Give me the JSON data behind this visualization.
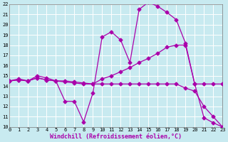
{
  "xlabel": "Windchill (Refroidissement éolien,°C)",
  "background_color": "#c8eaf0",
  "line_color": "#aa00aa",
  "grid_color": "#ffffff",
  "xlim": [
    0,
    23
  ],
  "ylim": [
    10,
    22
  ],
  "xticks": [
    0,
    1,
    2,
    3,
    4,
    5,
    6,
    7,
    8,
    9,
    10,
    11,
    12,
    13,
    14,
    15,
    16,
    17,
    18,
    19,
    20,
    21,
    22,
    23
  ],
  "yticks": [
    10,
    11,
    12,
    13,
    14,
    15,
    16,
    17,
    18,
    19,
    20,
    21,
    22
  ],
  "curve1_x": [
    0,
    1,
    2,
    3,
    4,
    5,
    6,
    7,
    8,
    9,
    10,
    11,
    12,
    13,
    14,
    15,
    16,
    17,
    18,
    19,
    20,
    21,
    22,
    23
  ],
  "curve1_y": [
    14.5,
    14.7,
    14.5,
    15.0,
    14.8,
    14.5,
    12.5,
    12.5,
    10.5,
    13.3,
    18.8,
    19.3,
    18.5,
    16.3,
    21.5,
    22.2,
    21.8,
    21.2,
    20.5,
    18.2,
    14.2,
    10.9,
    10.4,
    10.0
  ],
  "curve2_x": [
    0,
    1,
    2,
    3,
    4,
    5,
    6,
    7,
    8,
    9,
    10,
    11,
    12,
    13,
    14,
    15,
    16,
    17,
    18,
    19,
    20,
    21,
    22,
    23
  ],
  "curve2_y": [
    14.5,
    14.6,
    14.5,
    14.8,
    14.6,
    14.5,
    14.5,
    14.4,
    14.3,
    14.2,
    14.7,
    15.0,
    15.4,
    15.8,
    16.3,
    16.7,
    17.2,
    17.8,
    18.0,
    18.0,
    14.2,
    14.2,
    14.2,
    14.2
  ],
  "curve3_x": [
    0,
    1,
    2,
    3,
    4,
    5,
    6,
    7,
    8,
    9,
    10,
    11,
    12,
    13,
    14,
    15,
    16,
    17,
    18,
    19,
    20,
    21,
    22,
    23
  ],
  "curve3_y": [
    14.5,
    14.6,
    14.5,
    14.8,
    14.6,
    14.5,
    14.4,
    14.3,
    14.2,
    14.2,
    14.2,
    14.2,
    14.2,
    14.2,
    14.2,
    14.2,
    14.2,
    14.2,
    14.2,
    13.8,
    13.5,
    12.0,
    11.0,
    10.0
  ],
  "markersize": 2.5,
  "linewidth": 0.9,
  "tick_fontsize": 5,
  "label_fontsize": 6
}
